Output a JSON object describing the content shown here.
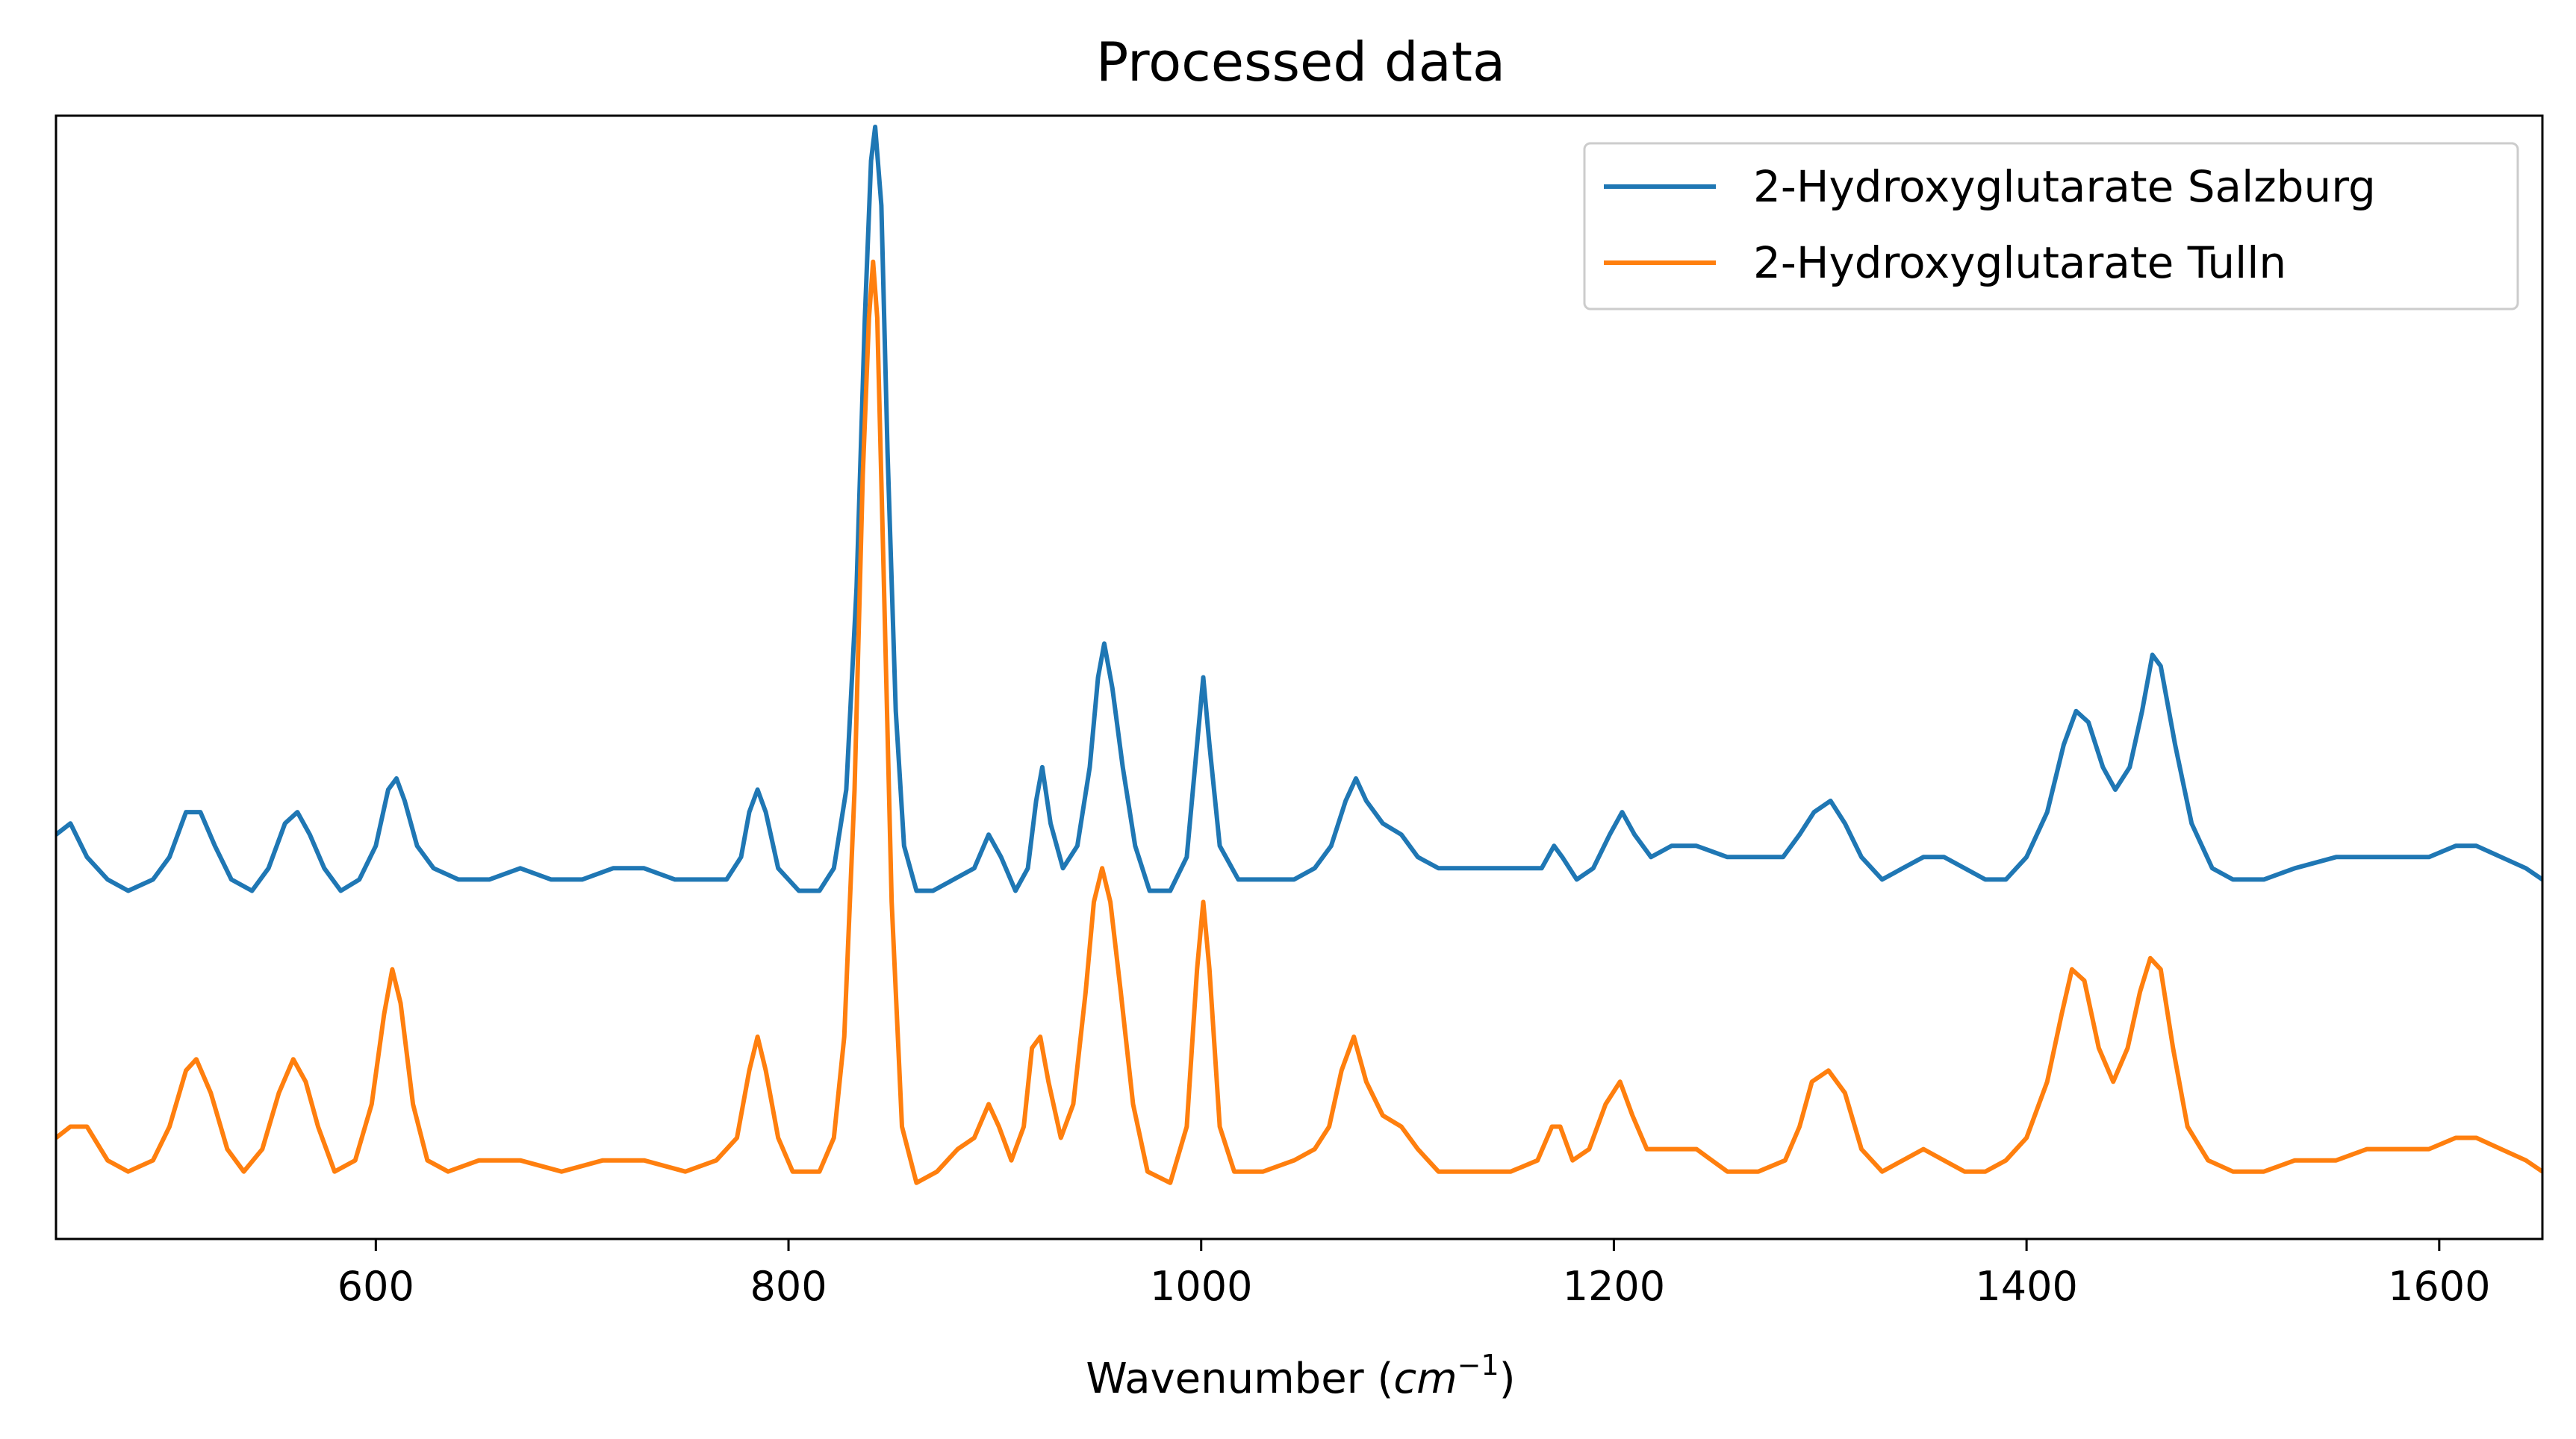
{
  "chart_data": {
    "type": "line",
    "title": "Processed data",
    "xlabel": {
      "prefix": "Wavenumber (",
      "var": "cm",
      "exp": "−1",
      "suffix": ")"
    },
    "ylabel": "",
    "xlim": [
      445,
      1650
    ],
    "ylim": [
      0,
      1
    ],
    "x_ticks": [
      600,
      800,
      1000,
      1200,
      1400,
      1600
    ],
    "y_ticks_shown": false,
    "grid": false,
    "legend_position": "top-right",
    "series": [
      {
        "name": "2-Hydroxyglutarate Salzburg",
        "color": "#1f77b4",
        "points": [
          [
            445,
            0.36
          ],
          [
            452,
            0.37
          ],
          [
            460,
            0.34
          ],
          [
            470,
            0.32
          ],
          [
            480,
            0.31
          ],
          [
            492,
            0.32
          ],
          [
            500,
            0.34
          ],
          [
            508,
            0.38
          ],
          [
            515,
            0.38
          ],
          [
            522,
            0.35
          ],
          [
            530,
            0.32
          ],
          [
            540,
            0.31
          ],
          [
            548,
            0.33
          ],
          [
            556,
            0.37
          ],
          [
            562,
            0.38
          ],
          [
            568,
            0.36
          ],
          [
            575,
            0.33
          ],
          [
            583,
            0.31
          ],
          [
            592,
            0.32
          ],
          [
            600,
            0.35
          ],
          [
            606,
            0.4
          ],
          [
            610,
            0.41
          ],
          [
            614,
            0.39
          ],
          [
            620,
            0.35
          ],
          [
            628,
            0.33
          ],
          [
            640,
            0.32
          ],
          [
            655,
            0.32
          ],
          [
            670,
            0.33
          ],
          [
            685,
            0.32
          ],
          [
            700,
            0.32
          ],
          [
            715,
            0.33
          ],
          [
            730,
            0.33
          ],
          [
            745,
            0.32
          ],
          [
            760,
            0.32
          ],
          [
            770,
            0.32
          ],
          [
            777,
            0.34
          ],
          [
            781,
            0.38
          ],
          [
            785,
            0.4
          ],
          [
            789,
            0.38
          ],
          [
            795,
            0.33
          ],
          [
            805,
            0.31
          ],
          [
            815,
            0.31
          ],
          [
            822,
            0.33
          ],
          [
            828,
            0.4
          ],
          [
            833,
            0.58
          ],
          [
            837,
            0.82
          ],
          [
            840,
            0.96
          ],
          [
            842,
            0.99
          ],
          [
            845,
            0.92
          ],
          [
            848,
            0.7
          ],
          [
            852,
            0.47
          ],
          [
            856,
            0.35
          ],
          [
            862,
            0.31
          ],
          [
            870,
            0.31
          ],
          [
            880,
            0.32
          ],
          [
            890,
            0.33
          ],
          [
            897,
            0.36
          ],
          [
            903,
            0.34
          ],
          [
            910,
            0.31
          ],
          [
            916,
            0.33
          ],
          [
            920,
            0.39
          ],
          [
            923,
            0.42
          ],
          [
            927,
            0.37
          ],
          [
            933,
            0.33
          ],
          [
            940,
            0.35
          ],
          [
            946,
            0.42
          ],
          [
            950,
            0.5
          ],
          [
            953,
            0.53
          ],
          [
            957,
            0.49
          ],
          [
            962,
            0.42
          ],
          [
            968,
            0.35
          ],
          [
            975,
            0.31
          ],
          [
            985,
            0.31
          ],
          [
            993,
            0.34
          ],
          [
            998,
            0.44
          ],
          [
            1001,
            0.5
          ],
          [
            1004,
            0.44
          ],
          [
            1009,
            0.35
          ],
          [
            1018,
            0.32
          ],
          [
            1030,
            0.32
          ],
          [
            1045,
            0.32
          ],
          [
            1055,
            0.33
          ],
          [
            1063,
            0.35
          ],
          [
            1070,
            0.39
          ],
          [
            1075,
            0.41
          ],
          [
            1080,
            0.39
          ],
          [
            1088,
            0.37
          ],
          [
            1097,
            0.36
          ],
          [
            1105,
            0.34
          ],
          [
            1115,
            0.33
          ],
          [
            1130,
            0.33
          ],
          [
            1150,
            0.33
          ],
          [
            1165,
            0.33
          ],
          [
            1171,
            0.35
          ],
          [
            1175,
            0.34
          ],
          [
            1182,
            0.32
          ],
          [
            1190,
            0.33
          ],
          [
            1198,
            0.36
          ],
          [
            1204,
            0.38
          ],
          [
            1210,
            0.36
          ],
          [
            1218,
            0.34
          ],
          [
            1228,
            0.35
          ],
          [
            1240,
            0.35
          ],
          [
            1255,
            0.34
          ],
          [
            1270,
            0.34
          ],
          [
            1282,
            0.34
          ],
          [
            1290,
            0.36
          ],
          [
            1297,
            0.38
          ],
          [
            1305,
            0.39
          ],
          [
            1312,
            0.37
          ],
          [
            1320,
            0.34
          ],
          [
            1330,
            0.32
          ],
          [
            1340,
            0.33
          ],
          [
            1350,
            0.34
          ],
          [
            1360,
            0.34
          ],
          [
            1370,
            0.33
          ],
          [
            1380,
            0.32
          ],
          [
            1390,
            0.32
          ],
          [
            1400,
            0.34
          ],
          [
            1410,
            0.38
          ],
          [
            1418,
            0.44
          ],
          [
            1424,
            0.47
          ],
          [
            1430,
            0.46
          ],
          [
            1437,
            0.42
          ],
          [
            1443,
            0.4
          ],
          [
            1450,
            0.42
          ],
          [
            1456,
            0.47
          ],
          [
            1461,
            0.52
          ],
          [
            1465,
            0.51
          ],
          [
            1472,
            0.44
          ],
          [
            1480,
            0.37
          ],
          [
            1490,
            0.33
          ],
          [
            1500,
            0.32
          ],
          [
            1515,
            0.32
          ],
          [
            1530,
            0.33
          ],
          [
            1550,
            0.34
          ],
          [
            1565,
            0.34
          ],
          [
            1580,
            0.34
          ],
          [
            1595,
            0.34
          ],
          [
            1608,
            0.35
          ],
          [
            1618,
            0.35
          ],
          [
            1630,
            0.34
          ],
          [
            1642,
            0.33
          ],
          [
            1650,
            0.32
          ]
        ]
      },
      {
        "name": "2-Hydroxyglutarate Tulln",
        "color": "#ff7f0e",
        "points": [
          [
            445,
            0.09
          ],
          [
            452,
            0.1
          ],
          [
            460,
            0.1
          ],
          [
            470,
            0.07
          ],
          [
            480,
            0.06
          ],
          [
            492,
            0.07
          ],
          [
            500,
            0.1
          ],
          [
            508,
            0.15
          ],
          [
            513,
            0.16
          ],
          [
            520,
            0.13
          ],
          [
            528,
            0.08
          ],
          [
            536,
            0.06
          ],
          [
            545,
            0.08
          ],
          [
            553,
            0.13
          ],
          [
            560,
            0.16
          ],
          [
            566,
            0.14
          ],
          [
            572,
            0.1
          ],
          [
            580,
            0.06
          ],
          [
            590,
            0.07
          ],
          [
            598,
            0.12
          ],
          [
            604,
            0.2
          ],
          [
            608,
            0.24
          ],
          [
            612,
            0.21
          ],
          [
            618,
            0.12
          ],
          [
            625,
            0.07
          ],
          [
            635,
            0.06
          ],
          [
            650,
            0.07
          ],
          [
            670,
            0.07
          ],
          [
            690,
            0.06
          ],
          [
            710,
            0.07
          ],
          [
            730,
            0.07
          ],
          [
            750,
            0.06
          ],
          [
            765,
            0.07
          ],
          [
            775,
            0.09
          ],
          [
            781,
            0.15
          ],
          [
            785,
            0.18
          ],
          [
            789,
            0.15
          ],
          [
            795,
            0.09
          ],
          [
            802,
            0.06
          ],
          [
            815,
            0.06
          ],
          [
            822,
            0.09
          ],
          [
            827,
            0.18
          ],
          [
            832,
            0.4
          ],
          [
            836,
            0.68
          ],
          [
            839,
            0.82
          ],
          [
            841,
            0.87
          ],
          [
            843,
            0.82
          ],
          [
            846,
            0.6
          ],
          [
            850,
            0.3
          ],
          [
            855,
            0.1
          ],
          [
            862,
            0.05
          ],
          [
            872,
            0.06
          ],
          [
            882,
            0.08
          ],
          [
            890,
            0.09
          ],
          [
            897,
            0.12
          ],
          [
            902,
            0.1
          ],
          [
            908,
            0.07
          ],
          [
            914,
            0.1
          ],
          [
            918,
            0.17
          ],
          [
            922,
            0.18
          ],
          [
            926,
            0.14
          ],
          [
            932,
            0.09
          ],
          [
            938,
            0.12
          ],
          [
            944,
            0.22
          ],
          [
            948,
            0.3
          ],
          [
            952,
            0.33
          ],
          [
            956,
            0.3
          ],
          [
            961,
            0.22
          ],
          [
            967,
            0.12
          ],
          [
            974,
            0.06
          ],
          [
            985,
            0.05
          ],
          [
            993,
            0.1
          ],
          [
            998,
            0.24
          ],
          [
            1001,
            0.3
          ],
          [
            1004,
            0.24
          ],
          [
            1009,
            0.1
          ],
          [
            1016,
            0.06
          ],
          [
            1030,
            0.06
          ],
          [
            1045,
            0.07
          ],
          [
            1055,
            0.08
          ],
          [
            1062,
            0.1
          ],
          [
            1068,
            0.15
          ],
          [
            1074,
            0.18
          ],
          [
            1080,
            0.14
          ],
          [
            1088,
            0.11
          ],
          [
            1097,
            0.1
          ],
          [
            1105,
            0.08
          ],
          [
            1115,
            0.06
          ],
          [
            1130,
            0.06
          ],
          [
            1150,
            0.06
          ],
          [
            1163,
            0.07
          ],
          [
            1170,
            0.1
          ],
          [
            1174,
            0.1
          ],
          [
            1180,
            0.07
          ],
          [
            1188,
            0.08
          ],
          [
            1196,
            0.12
          ],
          [
            1203,
            0.14
          ],
          [
            1209,
            0.11
          ],
          [
            1216,
            0.08
          ],
          [
            1228,
            0.08
          ],
          [
            1240,
            0.08
          ],
          [
            1255,
            0.06
          ],
          [
            1270,
            0.06
          ],
          [
            1283,
            0.07
          ],
          [
            1290,
            0.1
          ],
          [
            1296,
            0.14
          ],
          [
            1304,
            0.15
          ],
          [
            1312,
            0.13
          ],
          [
            1320,
            0.08
          ],
          [
            1330,
            0.06
          ],
          [
            1340,
            0.07
          ],
          [
            1350,
            0.08
          ],
          [
            1360,
            0.07
          ],
          [
            1370,
            0.06
          ],
          [
            1380,
            0.06
          ],
          [
            1390,
            0.07
          ],
          [
            1400,
            0.09
          ],
          [
            1410,
            0.14
          ],
          [
            1417,
            0.2
          ],
          [
            1422,
            0.24
          ],
          [
            1428,
            0.23
          ],
          [
            1435,
            0.17
          ],
          [
            1442,
            0.14
          ],
          [
            1449,
            0.17
          ],
          [
            1455,
            0.22
          ],
          [
            1460,
            0.25
          ],
          [
            1465,
            0.24
          ],
          [
            1471,
            0.17
          ],
          [
            1478,
            0.1
          ],
          [
            1488,
            0.07
          ],
          [
            1500,
            0.06
          ],
          [
            1515,
            0.06
          ],
          [
            1530,
            0.07
          ],
          [
            1550,
            0.07
          ],
          [
            1565,
            0.08
          ],
          [
            1580,
            0.08
          ],
          [
            1595,
            0.08
          ],
          [
            1608,
            0.09
          ],
          [
            1618,
            0.09
          ],
          [
            1630,
            0.08
          ],
          [
            1642,
            0.07
          ],
          [
            1650,
            0.06
          ]
        ]
      }
    ]
  }
}
